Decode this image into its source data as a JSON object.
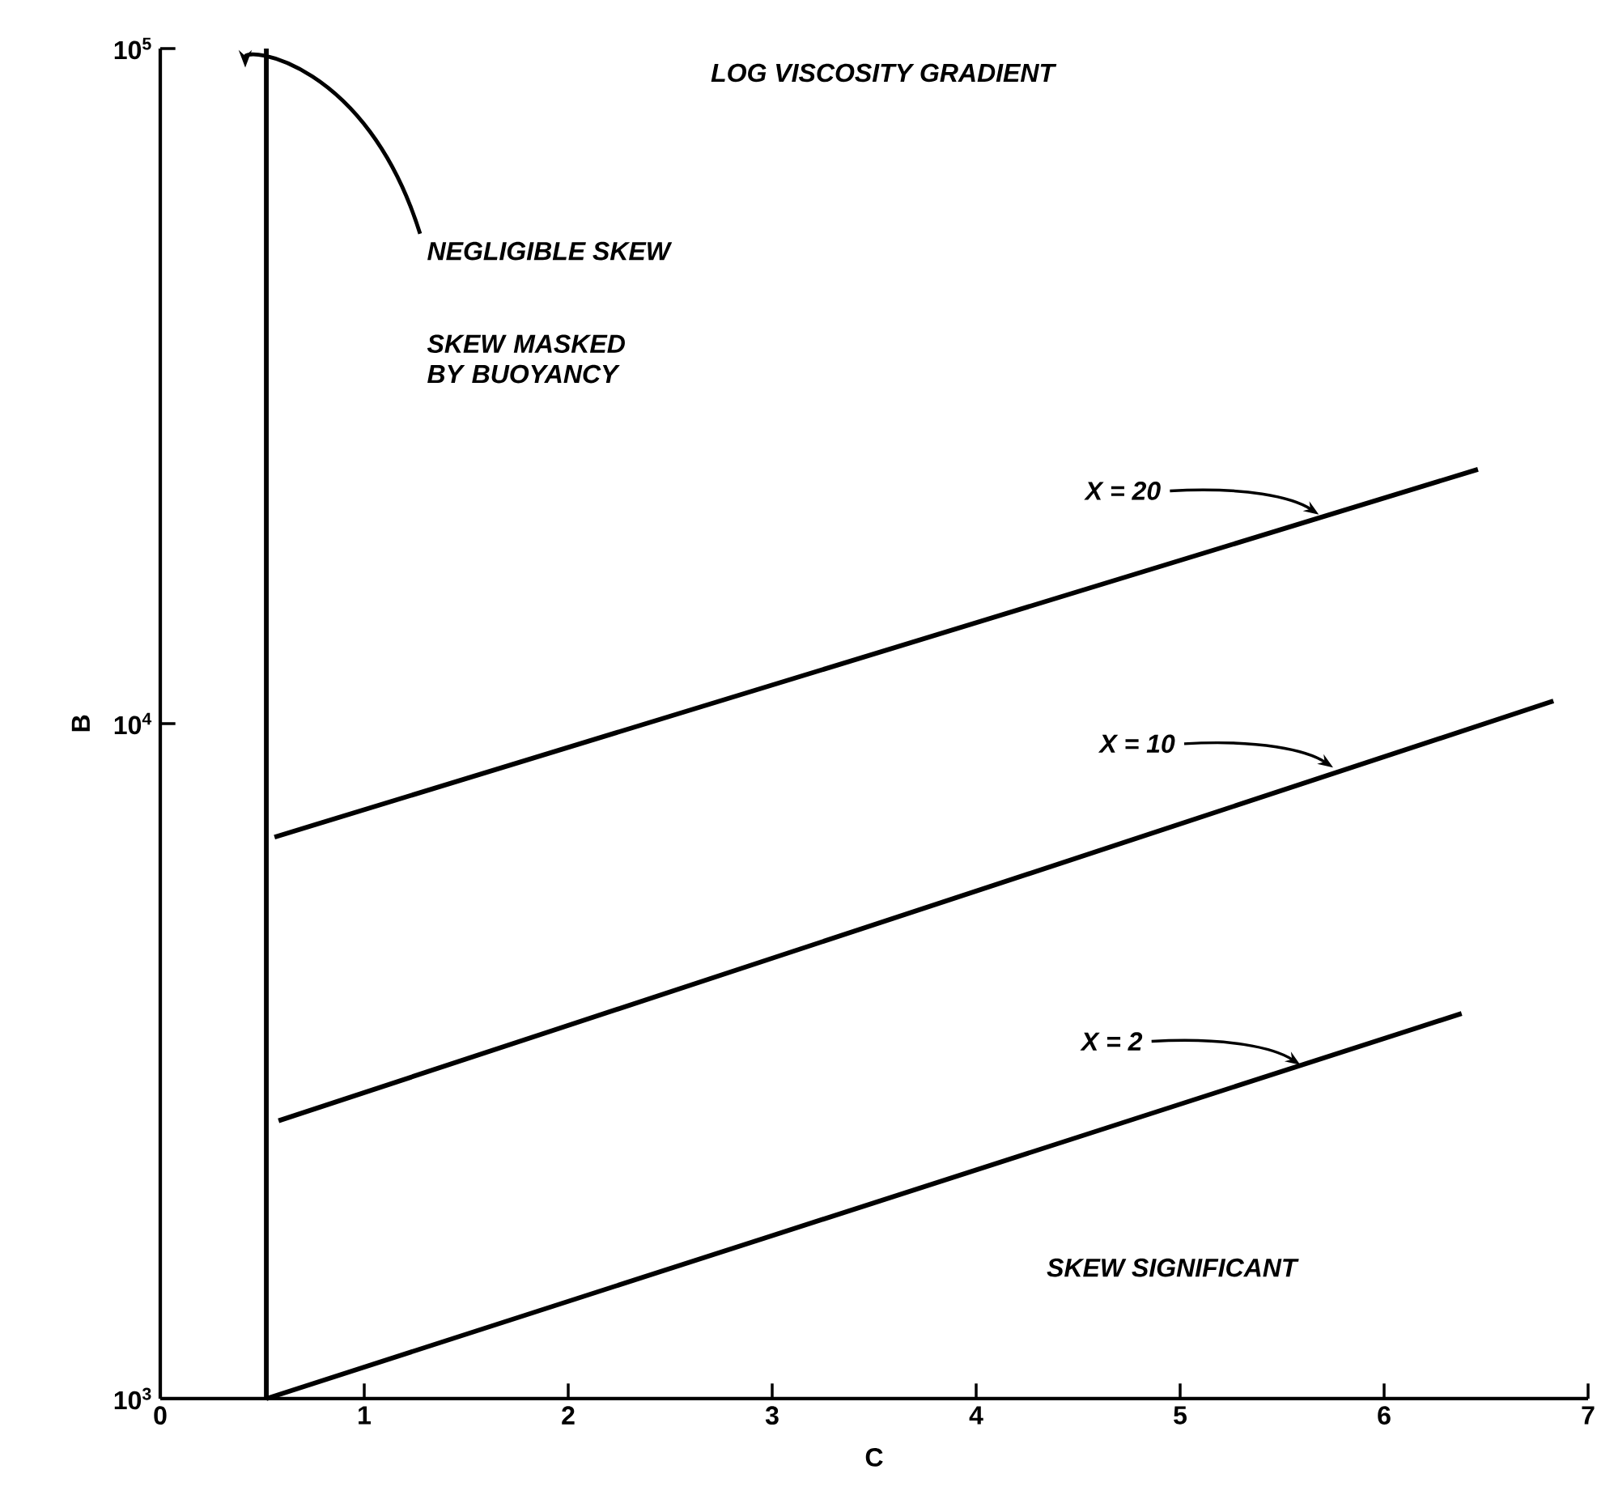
{
  "chart_data": {
    "type": "line",
    "title": "LOG VISCOSITY GRADIENT",
    "xlabel": "C",
    "ylabel": "B",
    "log": "y",
    "marker": "none",
    "xlim": [
      0,
      7
    ],
    "ylim": [
      1000,
      100000
    ],
    "xticks": [
      0,
      1,
      2,
      3,
      4,
      5,
      6,
      7
    ],
    "yticks": [
      {
        "value": 1000,
        "label": "10$^{3}$"
      },
      {
        "value": 10000,
        "label": "10$^{4}$"
      },
      {
        "value": 100000,
        "label": "10$^{5}$"
      }
    ],
    "series": [
      {
        "color": "#000000",
        "x": [
          0.52,
          0.52
        ],
        "values": [
          1000,
          100000
        ]
      },
      {
        "color": "#000000",
        "x": [
          0.52,
          6.38
        ],
        "values": [
          1000,
          3720
        ]
      },
      {
        "color": "#000000",
        "x": [
          0.58,
          6.83
        ],
        "values": [
          2580,
          10800
        ]
      },
      {
        "color": "#000000",
        "x": [
          0.56,
          6.46
        ],
        "values": [
          6790,
          23800
        ]
      }
    ],
    "annotations": [
      {
        "text": "X = 20",
        "x": 5.68,
        "y": 20400
      },
      {
        "text": "X = 10",
        "x": 5.75,
        "y": 8610
      },
      {
        "text": "X = 2",
        "x": 5.59,
        "y": 3120
      },
      "NEGLIGIBLE SKEW",
      "SKEW MASKED BY BUOYANCY",
      "SKEW SIGNIFICANT"
    ]
  }
}
